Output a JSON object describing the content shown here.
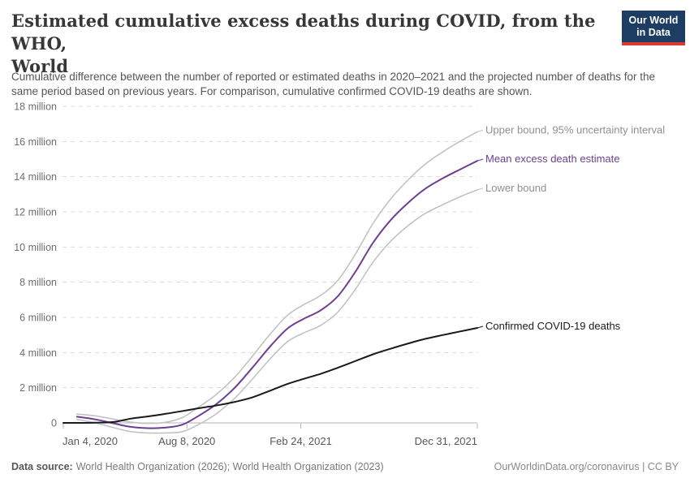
{
  "header": {
    "title_lines": [
      "Estimated cumulative excess deaths during COVID, from the WHO,",
      "World"
    ],
    "subtitle": "Cumulative difference between the number of reported or estimated deaths in 2020–2021 and the projected number of deaths for the same period based on previous years. For comparison, cumulative confirmed COVID-19 deaths are shown.",
    "logo": {
      "lines": [
        "Our World",
        "in Data"
      ],
      "bg_color": "#1d3d63",
      "stripe_color": "#d93a34"
    }
  },
  "chart_data": {
    "type": "line",
    "title": "Estimated cumulative excess deaths during COVID, from the WHO, World",
    "unit": "million",
    "ylim": [
      -0.6,
      18
    ],
    "grid": "horizontal dashed, solid zero line",
    "legend_position": "labels at right ends of lines",
    "colors": {
      "mean": "#6d3e91",
      "bounds_line": "#c2c2c2",
      "bounds_label": "#8f8f8f",
      "confirmed": "#1a1a1a",
      "gridline": "#dcdcdc",
      "zero_line": "#b3b3b3",
      "y_tick_text": "#6e6e6e",
      "x_tick_text": "#585858"
    },
    "y_ticks": [
      {
        "value": 0,
        "label": "0"
      },
      {
        "value": 2,
        "label": "2 million"
      },
      {
        "value": 4,
        "label": "4 million"
      },
      {
        "value": 6,
        "label": "6 million"
      },
      {
        "value": 8,
        "label": "8 million"
      },
      {
        "value": 10,
        "label": "10 million"
      },
      {
        "value": 12,
        "label": "12 million"
      },
      {
        "value": 14,
        "label": "14 million"
      },
      {
        "value": 16,
        "label": "16 million"
      },
      {
        "value": 18,
        "label": "18 million"
      }
    ],
    "x_ticks": [
      {
        "date": "2020-01-04",
        "label": "Jan 4, 2020",
        "align": "start"
      },
      {
        "date": "2020-08-08",
        "label": "Aug 8, 2020",
        "align": "middle"
      },
      {
        "date": "2021-02-24",
        "label": "Feb 24, 2021",
        "align": "middle"
      },
      {
        "date": "2021-12-31",
        "label": "Dec 31, 2021",
        "align": "end"
      }
    ],
    "series": [
      {
        "name": "Upper bound, 95% uncertainty interval",
        "color": "#c2c2c2",
        "label_color": "#8f8f8f",
        "width": 1.6,
        "points": [
          [
            "2020-01-28",
            0.5
          ],
          [
            "2020-02-29",
            0.4
          ],
          [
            "2020-03-31",
            0.22
          ],
          [
            "2020-04-30",
            0.05
          ],
          [
            "2020-05-31",
            -0.03
          ],
          [
            "2020-06-30",
            0.03
          ],
          [
            "2020-07-31",
            0.3
          ],
          [
            "2020-08-31",
            0.95
          ],
          [
            "2020-09-30",
            1.65
          ],
          [
            "2020-10-31",
            2.6
          ],
          [
            "2020-11-30",
            3.75
          ],
          [
            "2020-12-31",
            5.0
          ],
          [
            "2021-01-31",
            6.1
          ],
          [
            "2021-02-28",
            6.7
          ],
          [
            "2021-03-31",
            7.25
          ],
          [
            "2021-04-30",
            8.1
          ],
          [
            "2021-05-31",
            9.6
          ],
          [
            "2021-06-30",
            11.3
          ],
          [
            "2021-07-31",
            12.7
          ],
          [
            "2021-08-31",
            13.8
          ],
          [
            "2021-09-30",
            14.7
          ],
          [
            "2021-10-31",
            15.4
          ],
          [
            "2021-11-30",
            16.0
          ],
          [
            "2021-12-31",
            16.55
          ]
        ]
      },
      {
        "name": "Lower bound",
        "color": "#c2c2c2",
        "label_color": "#8f8f8f",
        "width": 1.6,
        "points": [
          [
            "2020-01-28",
            0.2
          ],
          [
            "2020-02-29",
            0.0
          ],
          [
            "2020-03-31",
            -0.26
          ],
          [
            "2020-04-30",
            -0.49
          ],
          [
            "2020-05-31",
            -0.57
          ],
          [
            "2020-06-30",
            -0.57
          ],
          [
            "2020-07-31",
            -0.5
          ],
          [
            "2020-08-31",
            -0.05
          ],
          [
            "2020-09-30",
            0.55
          ],
          [
            "2020-10-31",
            1.4
          ],
          [
            "2020-11-30",
            2.45
          ],
          [
            "2020-12-31",
            3.6
          ],
          [
            "2021-01-31",
            4.6
          ],
          [
            "2021-02-28",
            5.1
          ],
          [
            "2021-03-31",
            5.55
          ],
          [
            "2021-04-30",
            6.3
          ],
          [
            "2021-05-31",
            7.6
          ],
          [
            "2021-06-30",
            9.1
          ],
          [
            "2021-07-31",
            10.3
          ],
          [
            "2021-08-31",
            11.2
          ],
          [
            "2021-09-30",
            11.9
          ],
          [
            "2021-10-31",
            12.4
          ],
          [
            "2021-11-30",
            12.85
          ],
          [
            "2021-12-31",
            13.25
          ]
        ]
      },
      {
        "name": "Mean excess death estimate",
        "color": "#6d3e91",
        "label_color": "#6d3e91",
        "width": 2,
        "points": [
          [
            "2020-01-28",
            0.35
          ],
          [
            "2020-02-29",
            0.2
          ],
          [
            "2020-03-31",
            -0.02
          ],
          [
            "2020-04-30",
            -0.22
          ],
          [
            "2020-05-31",
            -0.3
          ],
          [
            "2020-06-30",
            -0.27
          ],
          [
            "2020-07-31",
            -0.1
          ],
          [
            "2020-08-31",
            0.45
          ],
          [
            "2020-09-30",
            1.1
          ],
          [
            "2020-10-31",
            2.0
          ],
          [
            "2020-11-30",
            3.1
          ],
          [
            "2020-12-31",
            4.3
          ],
          [
            "2021-01-31",
            5.35
          ],
          [
            "2021-02-28",
            5.9
          ],
          [
            "2021-03-31",
            6.4
          ],
          [
            "2021-04-30",
            7.2
          ],
          [
            "2021-05-31",
            8.6
          ],
          [
            "2021-06-30",
            10.2
          ],
          [
            "2021-07-31",
            11.5
          ],
          [
            "2021-08-31",
            12.5
          ],
          [
            "2021-09-30",
            13.3
          ],
          [
            "2021-10-31",
            13.9
          ],
          [
            "2021-11-30",
            14.4
          ],
          [
            "2021-12-31",
            14.9
          ]
        ]
      },
      {
        "name": "Confirmed COVID-19 deaths",
        "color": "#1a1a1a",
        "label_color": "#1a1a1a",
        "width": 2,
        "points": [
          [
            "2020-01-04",
            0.0
          ],
          [
            "2020-02-01",
            0.0
          ],
          [
            "2020-03-01",
            0.01
          ],
          [
            "2020-04-01",
            0.05
          ],
          [
            "2020-05-01",
            0.24
          ],
          [
            "2020-06-01",
            0.37
          ],
          [
            "2020-07-01",
            0.51
          ],
          [
            "2020-08-01",
            0.68
          ],
          [
            "2020-09-01",
            0.85
          ],
          [
            "2020-10-01",
            1.0
          ],
          [
            "2020-11-01",
            1.2
          ],
          [
            "2020-12-01",
            1.45
          ],
          [
            "2021-01-01",
            1.83
          ],
          [
            "2021-02-01",
            2.22
          ],
          [
            "2021-03-01",
            2.5
          ],
          [
            "2021-04-01",
            2.8
          ],
          [
            "2021-05-01",
            3.15
          ],
          [
            "2021-06-01",
            3.53
          ],
          [
            "2021-07-01",
            3.9
          ],
          [
            "2021-08-01",
            4.22
          ],
          [
            "2021-09-01",
            4.52
          ],
          [
            "2021-10-01",
            4.78
          ],
          [
            "2021-11-01",
            5.0
          ],
          [
            "2021-12-01",
            5.2
          ],
          [
            "2021-12-31",
            5.4
          ]
        ]
      }
    ]
  },
  "footer": {
    "datasource_label": "Data source:",
    "datasource_text": "World Health Organization (2026); World Health Organization (2023)",
    "license_text": "OurWorldinData.org/coronavirus | CC BY"
  }
}
